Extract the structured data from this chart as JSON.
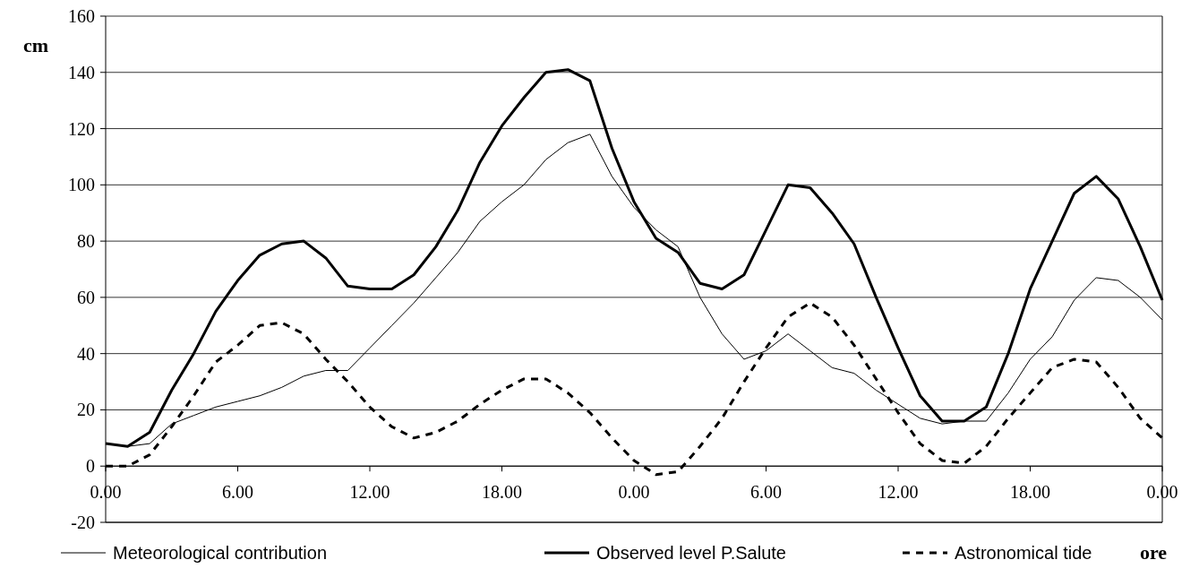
{
  "chart_data": {
    "type": "line",
    "ylabel": "cm",
    "xlabel": "ore",
    "categories": [
      "0.00",
      null,
      null,
      null,
      null,
      null,
      "6.00",
      null,
      null,
      null,
      null,
      null,
      "12.00",
      null,
      null,
      null,
      null,
      null,
      "18.00",
      null,
      null,
      null,
      null,
      null,
      "0.00",
      null,
      null,
      null,
      null,
      null,
      "6.00",
      null,
      null,
      null,
      null,
      null,
      "12.00",
      null,
      null,
      null,
      null,
      null,
      "18.00",
      null,
      null,
      null,
      null,
      null,
      "0.00"
    ],
    "series": [
      {
        "name": "Meteorological contribution",
        "color": "#000000",
        "line_style": "solid",
        "values": [
          8,
          7,
          8,
          15,
          18,
          21,
          23,
          25,
          28,
          32,
          34,
          34,
          42,
          50,
          58,
          67,
          76,
          87,
          94,
          100,
          109,
          115,
          118,
          103,
          92,
          84,
          78,
          60,
          47,
          38,
          41,
          47,
          41,
          35,
          33,
          27,
          22,
          17,
          15,
          16,
          16,
          26,
          38,
          46,
          59,
          67,
          66,
          60,
          52
        ]
      },
      {
        "name": "Observed level P.Salute",
        "color": "#000000",
        "line_style": "solid",
        "values": [
          8,
          7,
          12,
          27,
          40,
          55,
          66,
          75,
          79,
          80,
          74,
          64,
          63,
          63,
          68,
          78,
          91,
          108,
          121,
          131,
          140,
          141,
          137,
          113,
          94,
          81,
          76,
          65,
          63,
          68,
          84,
          100,
          99,
          90,
          79,
          60,
          42,
          25,
          16,
          16,
          21,
          40,
          63,
          80,
          97,
          103,
          95,
          78,
          59
        ]
      },
      {
        "name": "Astronomical tide",
        "color": "#000000",
        "line_style": "dashed",
        "values": [
          0,
          0,
          4,
          14,
          25,
          37,
          43,
          50,
          51,
          47,
          38,
          30,
          21,
          14,
          10,
          12,
          16,
          22,
          27,
          31,
          31,
          26,
          19,
          10,
          2,
          -3,
          -2,
          7,
          17,
          30,
          42,
          53,
          58,
          53,
          43,
          31,
          19,
          8,
          2,
          1,
          7,
          17,
          26,
          35,
          38,
          37,
          28,
          17,
          10
        ]
      }
    ],
    "ylim": [
      -20,
      160
    ],
    "yticks": [
      -20,
      0,
      20,
      40,
      60,
      80,
      100,
      120,
      140,
      160
    ],
    "grid": "y",
    "legend": "bottom"
  }
}
